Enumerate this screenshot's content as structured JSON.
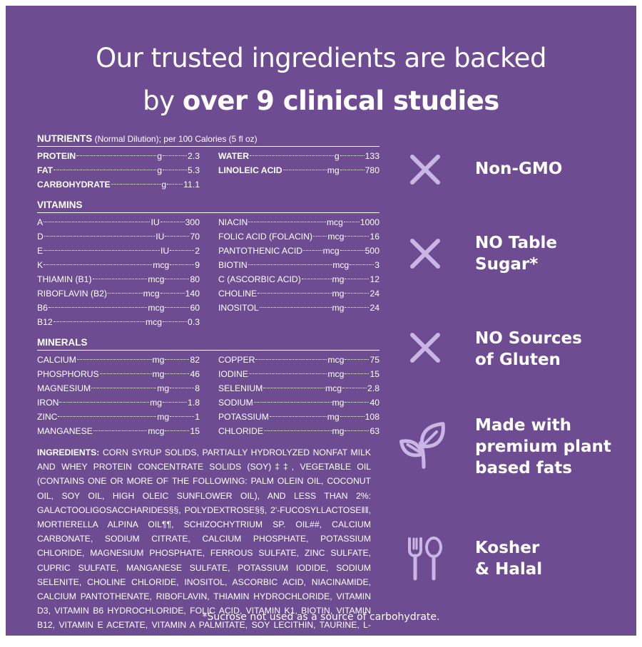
{
  "headline": {
    "line1": "Our trusted ingredients are backed",
    "line2_normal": "by ",
    "line2_bold": "over 9 clinical studies"
  },
  "nutrients": {
    "title": "NUTRIENTS",
    "subtitle": " (Normal Dilution); per 100 Calories (5 fl oz)",
    "left": [
      {
        "name": "PROTEIN",
        "unit": "g",
        "value": "2.3"
      },
      {
        "name": "FAT",
        "unit": "g",
        "value": "5.3"
      },
      {
        "name": "CARBOHYDRATE",
        "unit": "g",
        "value": "11.1"
      }
    ],
    "right": [
      {
        "name": "WATER",
        "unit": "g",
        "value": "133"
      },
      {
        "name": "LINOLEIC ACID",
        "unit": "mg",
        "value": "780"
      }
    ]
  },
  "vitamins": {
    "title": "VITAMINS",
    "left": [
      {
        "name": "A",
        "unit": "IU",
        "value": "300"
      },
      {
        "name": "D",
        "unit": "IU",
        "value": "70"
      },
      {
        "name": "E",
        "unit": "IU",
        "value": "2"
      },
      {
        "name": "K",
        "unit": "mcg",
        "value": "9"
      },
      {
        "name": "THIAMIN (B1)",
        "unit": "mcg",
        "value": "80"
      },
      {
        "name": "RIBOFLAVIN (B2)",
        "unit": "mcg",
        "value": "140"
      },
      {
        "name": "B6",
        "unit": "mcg",
        "value": "60"
      },
      {
        "name": "B12",
        "unit": "mcg",
        "value": "0.3"
      }
    ],
    "right": [
      {
        "name": "NIACIN",
        "unit": "mcg",
        "value": "1000"
      },
      {
        "name": "FOLIC ACID (FOLACIN)",
        "unit": "mcg",
        "value": "16"
      },
      {
        "name": "PANTOTHENIC ACID",
        "unit": "mcg",
        "value": "500"
      },
      {
        "name": "BIOTIN",
        "unit": "mcg",
        "value": "3"
      },
      {
        "name": "C (ASCORBIC ACID)",
        "unit": "mg",
        "value": "12"
      },
      {
        "name": "CHOLINE",
        "unit": "mg",
        "value": "24"
      },
      {
        "name": "INOSITOL",
        "unit": "mg",
        "value": "24"
      }
    ]
  },
  "minerals": {
    "title": "MINERALS",
    "left": [
      {
        "name": "CALCIUM",
        "unit": "mg",
        "value": "82"
      },
      {
        "name": "PHOSPHORUS",
        "unit": "mg",
        "value": "46"
      },
      {
        "name": "MAGNESIUM",
        "unit": "mg",
        "value": "8"
      },
      {
        "name": "IRON",
        "unit": "mg",
        "value": "1.8"
      },
      {
        "name": "ZINC",
        "unit": "mg",
        "value": "1"
      },
      {
        "name": "MANGANESE",
        "unit": "mcg",
        "value": "15"
      }
    ],
    "right": [
      {
        "name": "COPPER",
        "unit": "mcg",
        "value": "75"
      },
      {
        "name": "IODINE",
        "unit": "mcg",
        "value": "15"
      },
      {
        "name": "SELENIUM",
        "unit": "mcg",
        "value": "2.8"
      },
      {
        "name": "SODIUM",
        "unit": "mg",
        "value": "40"
      },
      {
        "name": "POTASSIUM",
        "unit": "mg",
        "value": "108"
      },
      {
        "name": "CHLORIDE",
        "unit": "mg",
        "value": "63"
      }
    ]
  },
  "ingredients": {
    "label": "INGREDIENTS:",
    "text": " CORN SYRUP SOLIDS, PARTIALLY HYDROLYZED NONFAT MILK AND WHEY PROTEIN CONCENTRATE SOLIDS (SOY)‡‡, VEGETABLE OIL (CONTAINS ONE OR MORE OF THE FOLLOWING: PALM OLEIN OIL, COCONUT OIL, SOY OIL, HIGH OLEIC SUNFLOWER OIL), AND LESS THAN 2%: GALACTOOLIGOSACCHARIDES§§, POLYDEXTROSE§§, 2'-FUCOSYLLACTOSE‖‖, MORTIERELLA ALPINA OIL¶¶, SCHIZOCHYTRIUM SP. OIL##, CALCIUM CARBONATE, SODIUM CITRATE, CALCIUM PHOSPHATE, POTASSIUM CHLORIDE, MAGNESIUM PHOSPHATE, FERROUS SULFATE, ZINC SULFATE, CUPRIC SULFATE, MANGANESE SULFATE, POTASSIUM IODIDE, SODIUM SELENITE, CHOLINE CHLORIDE, INOSITOL, ASCORBIC ACID, NIACINAMIDE, CALCIUM PANTOTHENATE, RIBOFLAVIN, THIAMIN HYDROCHLORIDE, VITAMIN D3, VITAMIN B6 HYDROCHLORIDE, FOLIC ACID, VITAMIN K1, BIOTIN, VITAMIN B12, VITAMIN E ACETATE, VITAMIN A PALMITATE, SOY LECITHIN, TAURINE, L-CARNITINE."
  },
  "claims": [
    {
      "icon": "x-mark-icon",
      "line1": "Non-GMO",
      "line2": ""
    },
    {
      "icon": "x-mark-icon",
      "line1": "NO Table",
      "line2": "Sugar*"
    },
    {
      "icon": "x-mark-icon",
      "line1": "NO Sources",
      "line2": "of Gluten"
    },
    {
      "icon": "leaf-icon",
      "line1": "Made with",
      "line2": "premium plant",
      "line3": "based fats"
    },
    {
      "icon": "fork-spoon-icon",
      "line1": "Kosher",
      "line2": "& Halal"
    }
  ],
  "footnote": "*Sucrose not used as a source of carbohydrate.",
  "colors": {
    "background": "#6d4c91",
    "icon": "#c9b6e4",
    "text": "#ffffff"
  }
}
